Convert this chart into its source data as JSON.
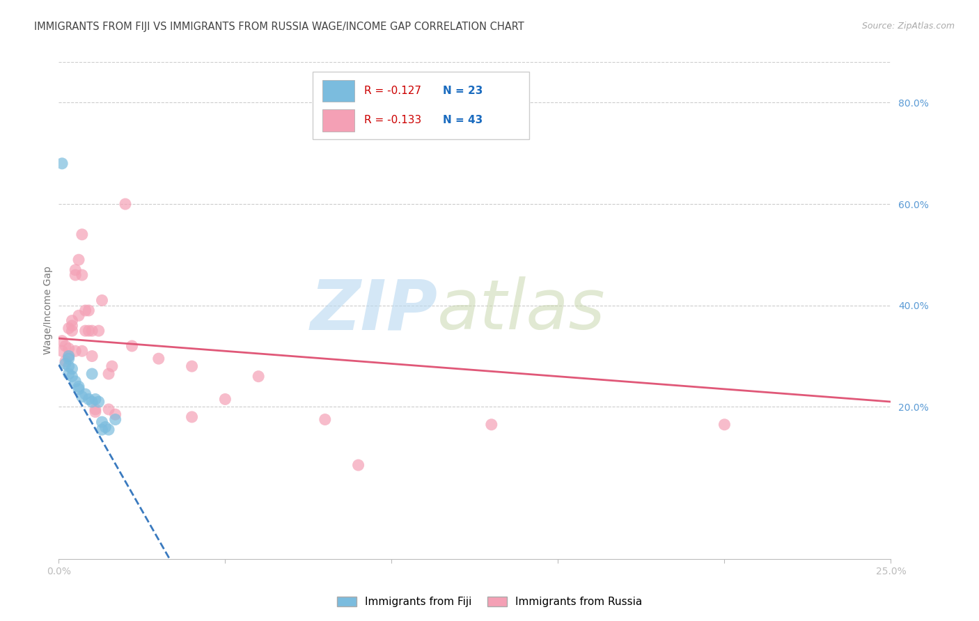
{
  "title": "IMMIGRANTS FROM FIJI VS IMMIGRANTS FROM RUSSIA WAGE/INCOME GAP CORRELATION CHART",
  "source": "Source: ZipAtlas.com",
  "ylabel": "Wage/Income Gap",
  "y_tick_values": [
    0.2,
    0.4,
    0.6,
    0.8
  ],
  "y_tick_labels": [
    "20.0%",
    "40.0%",
    "60.0%",
    "80.0%"
  ],
  "xlim": [
    0.0,
    0.25
  ],
  "ylim": [
    -0.1,
    0.88
  ],
  "fiji_color": "#7bbcde",
  "russia_color": "#f4a0b5",
  "fiji_line_color": "#3a7abf",
  "russia_line_color": "#e05878",
  "fiji_R": "-0.127",
  "fiji_N": "23",
  "russia_R": "-0.133",
  "russia_N": "43",
  "grid_color": "#cccccc",
  "bg_color": "#ffffff",
  "tick_color": "#5b9bd5",
  "r_color": "#cc0000",
  "n_color": "#1a6bbf",
  "title_color": "#444444",
  "ylabel_color": "#777777",
  "fiji_x": [
    0.001,
    0.002,
    0.003,
    0.003,
    0.003,
    0.004,
    0.004,
    0.005,
    0.006,
    0.006,
    0.007,
    0.008,
    0.009,
    0.01,
    0.01,
    0.011,
    0.012,
    0.013,
    0.013,
    0.014,
    0.015,
    0.017,
    0.003
  ],
  "fiji_y": [
    0.68,
    0.285,
    0.295,
    0.28,
    0.265,
    0.275,
    0.26,
    0.25,
    0.24,
    0.235,
    0.22,
    0.225,
    0.215,
    0.265,
    0.21,
    0.215,
    0.21,
    0.17,
    0.155,
    0.16,
    0.155,
    0.175,
    0.3
  ],
  "russia_x": [
    0.001,
    0.001,
    0.002,
    0.002,
    0.003,
    0.003,
    0.003,
    0.004,
    0.004,
    0.004,
    0.005,
    0.005,
    0.005,
    0.006,
    0.006,
    0.007,
    0.007,
    0.007,
    0.008,
    0.008,
    0.009,
    0.009,
    0.01,
    0.01,
    0.011,
    0.011,
    0.012,
    0.013,
    0.015,
    0.015,
    0.016,
    0.017,
    0.02,
    0.022,
    0.03,
    0.04,
    0.04,
    0.05,
    0.06,
    0.08,
    0.09,
    0.13,
    0.2
  ],
  "russia_y": [
    0.31,
    0.33,
    0.29,
    0.32,
    0.355,
    0.315,
    0.3,
    0.37,
    0.36,
    0.35,
    0.47,
    0.46,
    0.31,
    0.49,
    0.38,
    0.54,
    0.46,
    0.31,
    0.39,
    0.35,
    0.39,
    0.35,
    0.3,
    0.35,
    0.195,
    0.19,
    0.35,
    0.41,
    0.265,
    0.195,
    0.28,
    0.185,
    0.6,
    0.32,
    0.295,
    0.28,
    0.18,
    0.215,
    0.26,
    0.175,
    0.085,
    0.165,
    0.165
  ]
}
